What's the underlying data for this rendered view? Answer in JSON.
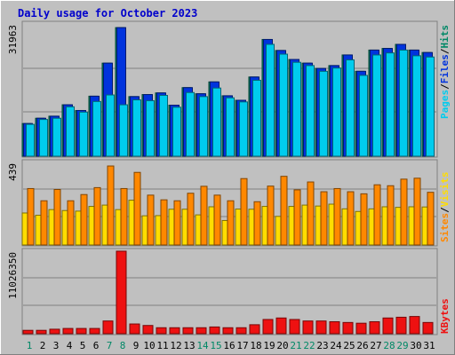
{
  "title": "Daily usage for October 2023",
  "chart_data": [
    {
      "type": "bar",
      "panel": "top",
      "ymax_label": "31963",
      "ymax": 31963,
      "legend": [
        "Pages",
        "Files",
        "Hits"
      ],
      "colors": {
        "Pages": "#00ccee",
        "Files": "#0033dd",
        "Hits": "#008866"
      },
      "categories": [
        "1",
        "2",
        "3",
        "4",
        "5",
        "6",
        "7",
        "8",
        "9",
        "10",
        "11",
        "12",
        "13",
        "14",
        "15",
        "16",
        "17",
        "18",
        "19",
        "20",
        "21",
        "22",
        "23",
        "24",
        "25",
        "26",
        "27",
        "28",
        "29",
        "30",
        "31"
      ],
      "series": [
        {
          "name": "Hits",
          "values": [
            8000,
            9300,
            9800,
            12600,
            11200,
            14700,
            22800,
            31500,
            14600,
            15100,
            15500,
            12500,
            16800,
            15300,
            18200,
            14800,
            13700,
            19400,
            28600,
            25900,
            23700,
            22800,
            21500,
            22200,
            24800,
            20800,
            26000,
            26400,
            27400,
            26000,
            25400
          ]
        },
        {
          "name": "Files",
          "values": [
            8000,
            9300,
            9800,
            12600,
            11200,
            14700,
            22800,
            31500,
            14600,
            15100,
            15500,
            12500,
            16800,
            15300,
            18200,
            14800,
            13700,
            19400,
            28600,
            25900,
            23700,
            22800,
            21500,
            22200,
            24800,
            20800,
            26000,
            26400,
            27400,
            26000,
            25400
          ]
        },
        {
          "name": "Pages",
          "values": [
            7800,
            9000,
            9300,
            12100,
            10800,
            13400,
            15000,
            12600,
            13800,
            13600,
            14900,
            12000,
            15600,
            14600,
            16700,
            14300,
            13300,
            18600,
            27400,
            25000,
            23000,
            22200,
            20800,
            21600,
            23600,
            19800,
            24800,
            25300,
            26000,
            24600,
            24300
          ]
        }
      ]
    },
    {
      "type": "bar",
      "panel": "middle",
      "ymax_label": "439",
      "ymax": 439,
      "legend": [
        "Sites",
        "Visits"
      ],
      "colors": {
        "Sites": "#ff8800",
        "Visits": "#ffdd00"
      },
      "categories": [
        "1",
        "2",
        "3",
        "4",
        "5",
        "6",
        "7",
        "8",
        "9",
        "10",
        "11",
        "12",
        "13",
        "14",
        "15",
        "16",
        "17",
        "18",
        "19",
        "20",
        "21",
        "22",
        "23",
        "24",
        "25",
        "26",
        "27",
        "28",
        "29",
        "30",
        "31"
      ],
      "series": [
        {
          "name": "Sites",
          "values": [
            300,
            235,
            295,
            235,
            268,
            305,
            420,
            300,
            386,
            265,
            240,
            235,
            275,
            312,
            265,
            235,
            353,
            230,
            313,
            365,
            293,
            335,
            283,
            300,
            283,
            272,
            320,
            315,
            350,
            355,
            280
          ]
        },
        {
          "name": "Visits",
          "values": [
            170,
            158,
            188,
            183,
            180,
            205,
            212,
            188,
            238,
            155,
            156,
            190,
            190,
            160,
            203,
            130,
            191,
            190,
            205,
            152,
            205,
            212,
            207,
            217,
            192,
            178,
            192,
            203,
            200,
            203,
            202
          ]
        }
      ]
    },
    {
      "type": "bar",
      "panel": "bottom",
      "ymax_label": "11026350",
      "ymax": 11026350,
      "legend": [
        "KBytes"
      ],
      "colors": {
        "KBytes": "#ee1111"
      },
      "categories": [
        "1",
        "2",
        "3",
        "4",
        "5",
        "6",
        "7",
        "8",
        "9",
        "10",
        "11",
        "12",
        "13",
        "14",
        "15",
        "16",
        "17",
        "18",
        "19",
        "20",
        "21",
        "22",
        "23",
        "24",
        "25",
        "26",
        "27",
        "28",
        "29",
        "30",
        "31"
      ],
      "weekend_days": [
        1,
        7,
        8,
        14,
        15,
        21,
        22,
        28,
        29
      ],
      "series": [
        {
          "name": "KBytes",
          "values": [
            450000,
            450000,
            600000,
            700000,
            700000,
            700000,
            1700000,
            11026350,
            1300000,
            1100000,
            800000,
            800000,
            800000,
            800000,
            900000,
            800000,
            800000,
            1200000,
            1900000,
            2100000,
            1900000,
            1700000,
            1700000,
            1600000,
            1500000,
            1400000,
            1600000,
            2100000,
            2200000,
            2300000,
            1500000
          ]
        }
      ]
    }
  ]
}
